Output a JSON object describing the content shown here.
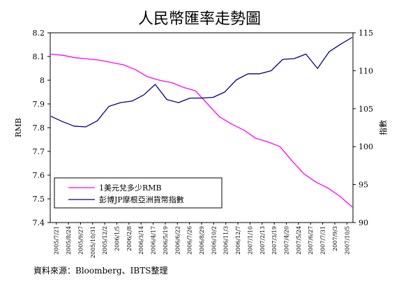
{
  "chart_data": {
    "type": "line",
    "title": "人民幣匯率走勢圖",
    "left_axis": {
      "label": "RMB",
      "ylim": [
        7.4,
        8.2
      ],
      "ticks": [
        "8.2",
        "8.1",
        "8",
        "7.9",
        "7.8",
        "7.7",
        "7.6",
        "7.5",
        "7.4"
      ]
    },
    "right_axis": {
      "label": "指數",
      "ylim": [
        90,
        115
      ],
      "ticks": [
        "115",
        "110",
        "105",
        "100",
        "95",
        "90"
      ]
    },
    "x_ticks": [
      "2005/7/21",
      "2005/8/24",
      "2005/9/27",
      "2005/10/31",
      "2005/12/2",
      "2006/1/5",
      "2006/2/8",
      "2006/3/14",
      "2006/4/17",
      "2006/5/19",
      "2006/6/22",
      "2006/7/26",
      "2006/8/29",
      "2006/10/2",
      "2006/11/3",
      "2006/12/7",
      "2007/1/10",
      "2007/2/13",
      "2007/3/19",
      "2007/4/20",
      "2007/5/24",
      "2007/6/27",
      "2007/7/31",
      "2007/9/3",
      "2007/10/5"
    ],
    "series": [
      {
        "name": "1美元兌多少RMB",
        "axis": "left",
        "color": "#ff00ff",
        "values": [
          8.11,
          8.105,
          8.095,
          8.09,
          8.085,
          8.075,
          8.065,
          8.045,
          8.015,
          8.0,
          7.99,
          7.97,
          7.955,
          7.9,
          7.845,
          7.815,
          7.79,
          7.755,
          7.74,
          7.72,
          7.66,
          7.605,
          7.57,
          7.545,
          7.51,
          7.465
        ]
      },
      {
        "name": "彭博JP摩根亞洲貨幣指數",
        "axis": "right",
        "color": "#000080",
        "values": [
          104.0,
          103.3,
          102.7,
          102.6,
          103.4,
          105.3,
          105.8,
          106.0,
          106.8,
          108.2,
          106.2,
          105.8,
          106.4,
          106.4,
          106.5,
          107.2,
          108.8,
          109.6,
          109.6,
          110.0,
          111.5,
          111.6,
          112.2,
          110.3,
          112.5,
          113.5,
          114.4
        ]
      }
    ],
    "legend": "bottom-left",
    "source_note": "資料來源：Bloomberg、IBTS整理"
  }
}
